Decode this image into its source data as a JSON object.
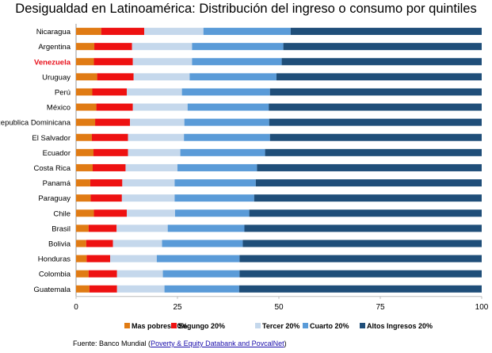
{
  "chart_data": {
    "type": "bar",
    "orientation": "horizontal",
    "stacked": true,
    "title": "Desigualdad en Latinoamérica: Distribución del ingreso o consumo por quintiles",
    "xlabel": "",
    "ylabel": "",
    "xlim": [
      0,
      100
    ],
    "xticks": [
      0,
      25,
      50,
      75,
      100
    ],
    "grid": false,
    "legend_position": "bottom",
    "highlight_category": "Venezuela",
    "highlight_color": "#e8111c",
    "categories": [
      "Nicaragua",
      "Argentina",
      "Venezuela",
      "Uruguay",
      "Perú",
      "México",
      "Republica Dominicana",
      "El Salvador",
      "Ecuador",
      "Costa Rica",
      "Panamá",
      "Paraguay",
      "Chile",
      "Brasil",
      "Bolivia",
      "Honduras",
      "Colombia",
      "Guatemala"
    ],
    "series": [
      {
        "name": "Mas pobres 20%",
        "color": "#e07b14",
        "values": [
          6.2,
          4.5,
          4.4,
          5.2,
          4.0,
          5.0,
          4.7,
          3.9,
          4.3,
          4.1,
          3.5,
          3.6,
          4.4,
          3.1,
          2.5,
          2.6,
          3.1,
          3.3
        ]
      },
      {
        "name": "Segungo 20%",
        "color": "#ee1111",
        "values": [
          10.6,
          9.3,
          9.6,
          9.0,
          8.5,
          9.0,
          8.6,
          8.9,
          8.5,
          8.1,
          7.9,
          7.7,
          8.1,
          6.9,
          6.6,
          5.8,
          7.0,
          6.8
        ]
      },
      {
        "name": "Tercer 20%",
        "color": "#c5d8ec",
        "values": [
          14.6,
          14.8,
          14.6,
          13.8,
          13.6,
          13.5,
          13.4,
          13.8,
          12.9,
          12.8,
          12.9,
          13.0,
          11.9,
          12.6,
          12.1,
          11.5,
          11.3,
          11.7
        ]
      },
      {
        "name": "Cuarto 20%",
        "color": "#5a9bd8",
        "values": [
          21.5,
          22.5,
          22.1,
          21.4,
          21.7,
          20.0,
          20.9,
          21.2,
          20.9,
          19.6,
          20.0,
          19.6,
          18.3,
          18.9,
          19.9,
          20.4,
          18.9,
          18.4
        ]
      },
      {
        "name": "Altos Ingresos 20%",
        "color": "#1f4e79",
        "values": [
          47.1,
          48.9,
          49.3,
          50.6,
          52.2,
          52.5,
          52.4,
          52.2,
          53.4,
          55.4,
          55.7,
          56.1,
          57.3,
          58.5,
          58.9,
          59.7,
          59.7,
          59.8
        ]
      }
    ]
  },
  "source": {
    "prefix": "Fuente: Banco Mundial (",
    "link_text": "Poverty & Equity Databank and PovcalNet",
    "suffix": ")"
  }
}
